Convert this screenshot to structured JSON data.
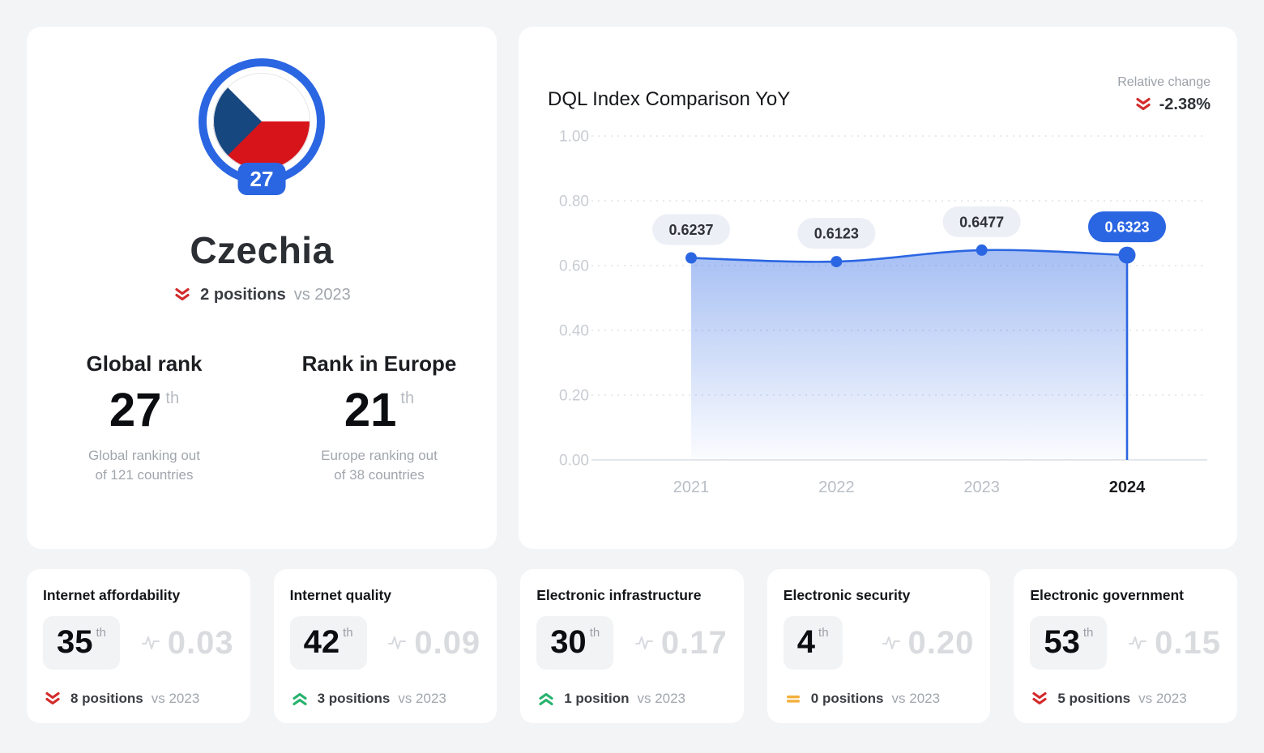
{
  "colors": {
    "accent_blue": "#2B66E2",
    "trend_down_red": "#D32B2B",
    "trend_up_green": "#27B26E",
    "trend_neutral_amber": "#F2AF3A",
    "flag_blue": "#17477F",
    "flag_red": "#D7141A",
    "score_gray": "#D9DBDF"
  },
  "country_card": {
    "rank_badge": "27",
    "country_name": "Czechia",
    "change": {
      "direction": "down",
      "text": "2 positions",
      "vs": "vs 2023"
    },
    "global_rank": {
      "title": "Global rank",
      "rank": "27",
      "ordinal": "th",
      "caption": "Global ranking out\nof 121 countries"
    },
    "europe_rank": {
      "title": "Rank in Europe",
      "rank": "21",
      "ordinal": "th",
      "caption": "Europe ranking out\nof 38 countries"
    }
  },
  "chart_card": {
    "title": "DQL Index Comparison YoY",
    "relative_change_label": "Relative change",
    "relative_change_direction": "down",
    "relative_change_value": "-2.38%"
  },
  "chart_data": {
    "type": "area",
    "title": "DQL Index Comparison YoY",
    "x": [
      "2021",
      "2022",
      "2023",
      "2024"
    ],
    "series": [
      {
        "name": "DQL Index",
        "values": [
          0.6237,
          0.6123,
          0.6477,
          0.6323
        ]
      }
    ],
    "point_labels": [
      "0.6237",
      "0.6123",
      "0.6477",
      "0.6323"
    ],
    "highlight_index": 3,
    "ylim": [
      0,
      1
    ],
    "yticks": [
      0,
      0.2,
      0.4,
      0.6,
      0.8,
      1.0
    ],
    "ytick_labels": [
      "0.00",
      "0.20",
      "0.40",
      "0.60",
      "0.80",
      "1.00"
    ],
    "grid": "horizontal-dashed",
    "legend": "none"
  },
  "subindices": [
    {
      "title": "Internet affordability",
      "rank": "35",
      "ordinal": "th",
      "score": "0.03",
      "trend": "down",
      "change": "8 positions",
      "vs": "vs 2023"
    },
    {
      "title": "Internet quality",
      "rank": "42",
      "ordinal": "th",
      "score": "0.09",
      "trend": "up",
      "change": "3 positions",
      "vs": "vs 2023"
    },
    {
      "title": "Electronic infrastructure",
      "rank": "30",
      "ordinal": "th",
      "score": "0.17",
      "trend": "up",
      "change": "1 position",
      "vs": "vs 2023"
    },
    {
      "title": "Electronic security",
      "rank": "4",
      "ordinal": "th",
      "score": "0.20",
      "trend": "neutral",
      "change": "0 positions",
      "vs": "vs 2023"
    },
    {
      "title": "Electronic government",
      "rank": "53",
      "ordinal": "th",
      "score": "0.15",
      "trend": "down",
      "change": "5 positions",
      "vs": "vs 2023"
    }
  ]
}
